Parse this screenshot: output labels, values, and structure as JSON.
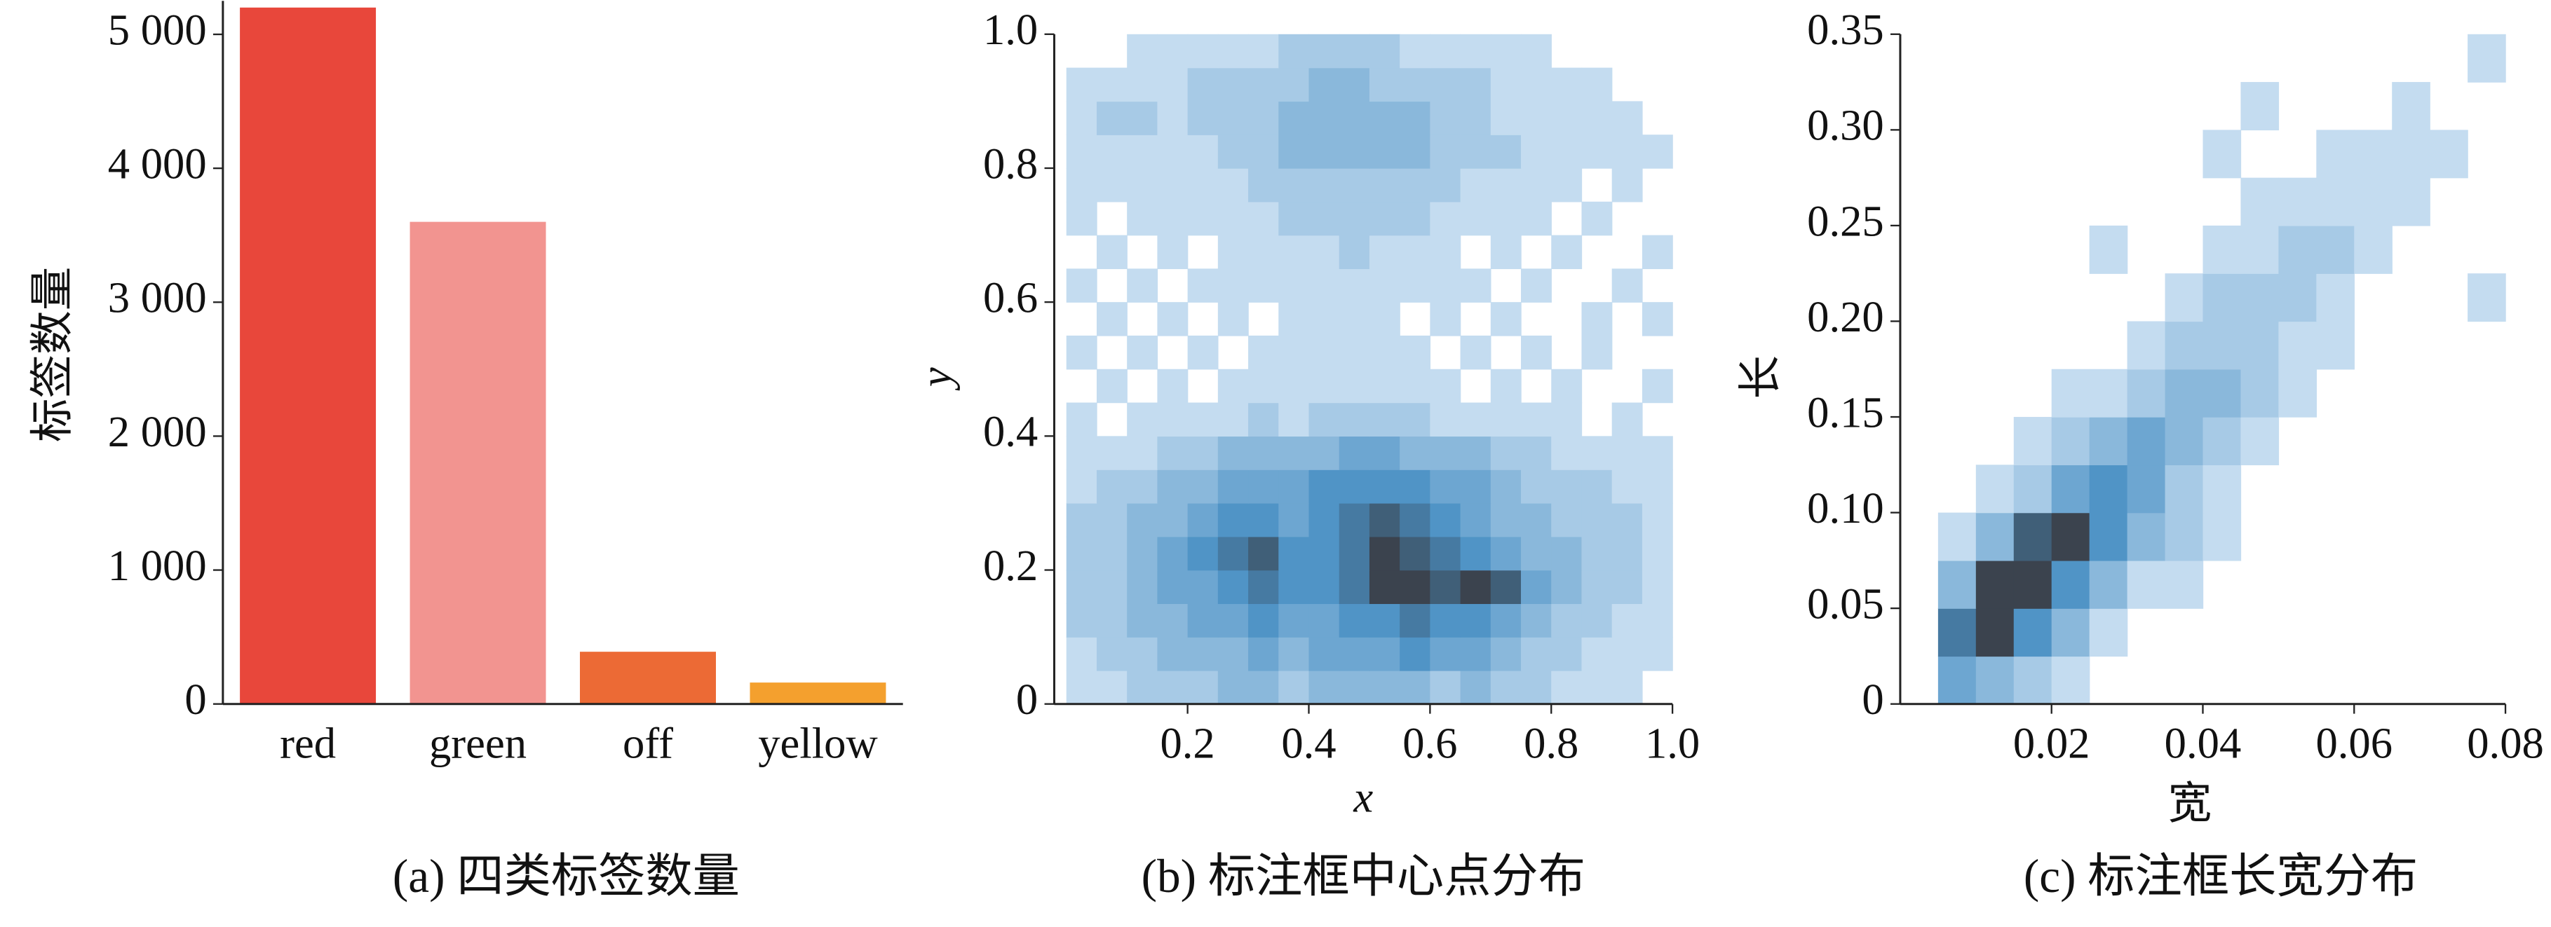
{
  "chart_data": [
    {
      "type": "bar",
      "title": "(a) 四类标签数量",
      "ylabel": "标签数量",
      "categories": [
        "red",
        "green",
        "off",
        "yellow"
      ],
      "values": [
        5200,
        3600,
        390,
        160
      ],
      "colors": [
        "#e8473b",
        "#f29490",
        "#ec6a35",
        "#f4a02e"
      ],
      "ylim": [
        0,
        5250
      ],
      "yticks": [
        0,
        {
          "value": 1000,
          "label": "1 000"
        },
        {
          "value": 2000,
          "label": "2 000"
        },
        {
          "value": 3000,
          "label": "3 000"
        },
        {
          "value": 4000,
          "label": "4 000"
        },
        {
          "value": 5000,
          "label": "5 000"
        }
      ]
    },
    {
      "type": "hist2d",
      "title": "(b) 标注框中心点分布",
      "xlabel": "x",
      "ylabel": "y",
      "xlim": [
        -0.02,
        1
      ],
      "ylim": [
        0,
        1
      ],
      "xticks": [
        0.2,
        0.4,
        0.6,
        0.8,
        {
          "value": 1,
          "label": "1.0"
        }
      ],
      "yticks": [
        0,
        0.2,
        0.4,
        0.6,
        0.8,
        {
          "value": 1,
          "label": "1.0"
        }
      ],
      "cmap": [
        "#c4dcf0",
        "#4a90c4",
        "#3b434e"
      ],
      "x_bins": [
        0,
        0.05,
        0.1,
        0.15,
        0.2,
        0.25,
        0.3,
        0.35,
        0.4,
        0.45,
        0.5,
        0.55,
        0.6,
        0.65,
        0.7,
        0.75,
        0.8,
        0.85,
        0.9,
        0.95,
        1
      ],
      "y_bins": [
        0,
        0.05,
        0.1,
        0.15,
        0.2,
        0.25,
        0.3,
        0.35,
        0.4,
        0.45,
        0.5,
        0.55,
        0.6,
        0.65,
        0.7,
        0.75,
        0.8,
        0.85,
        0.9,
        0.95,
        1
      ],
      "values": [
        [
          1,
          1,
          2,
          2,
          2,
          3,
          3,
          2,
          3,
          3,
          3,
          3,
          2,
          3,
          2,
          2,
          1,
          1,
          1,
          0
        ],
        [
          1,
          2,
          2,
          3,
          3,
          3,
          4,
          3,
          4,
          4,
          4,
          5,
          4,
          4,
          3,
          2,
          2,
          1,
          1,
          1
        ],
        [
          2,
          2,
          3,
          3,
          4,
          4,
          5,
          4,
          4,
          5,
          5,
          6,
          5,
          5,
          4,
          3,
          2,
          2,
          1,
          1
        ],
        [
          2,
          2,
          3,
          4,
          4,
          5,
          6,
          5,
          5,
          6,
          8,
          8,
          7,
          8,
          7,
          4,
          3,
          2,
          2,
          1
        ],
        [
          2,
          2,
          3,
          4,
          5,
          6,
          7,
          5,
          5,
          6,
          8,
          7,
          6,
          5,
          4,
          3,
          3,
          2,
          2,
          1
        ],
        [
          2,
          2,
          3,
          3,
          4,
          5,
          5,
          4,
          5,
          6,
          7,
          6,
          5,
          4,
          3,
          3,
          2,
          2,
          2,
          1
        ],
        [
          1,
          2,
          2,
          3,
          3,
          4,
          4,
          4,
          5,
          5,
          5,
          5,
          4,
          4,
          3,
          2,
          2,
          2,
          1,
          1
        ],
        [
          1,
          1,
          1,
          2,
          2,
          3,
          3,
          3,
          3,
          4,
          4,
          3,
          3,
          3,
          2,
          2,
          1,
          1,
          1,
          1
        ],
        [
          1,
          0,
          1,
          1,
          1,
          1,
          2,
          1,
          2,
          2,
          2,
          2,
          1,
          1,
          1,
          1,
          1,
          0,
          1,
          0
        ],
        [
          0,
          1,
          0,
          1,
          0,
          1,
          1,
          1,
          1,
          1,
          1,
          1,
          1,
          0,
          1,
          0,
          1,
          0,
          0,
          1
        ],
        [
          1,
          0,
          1,
          0,
          1,
          0,
          1,
          1,
          1,
          1,
          1,
          1,
          0,
          1,
          0,
          1,
          0,
          1,
          0,
          0
        ],
        [
          0,
          1,
          0,
          1,
          0,
          1,
          0,
          1,
          1,
          1,
          1,
          0,
          1,
          0,
          1,
          0,
          0,
          1,
          0,
          1
        ],
        [
          1,
          0,
          1,
          0,
          1,
          1,
          1,
          1,
          1,
          1,
          1,
          1,
          1,
          1,
          0,
          1,
          0,
          0,
          1,
          0
        ],
        [
          0,
          1,
          0,
          1,
          0,
          1,
          1,
          1,
          1,
          2,
          1,
          1,
          1,
          0,
          1,
          0,
          1,
          0,
          0,
          1
        ],
        [
          1,
          0,
          1,
          1,
          1,
          1,
          1,
          2,
          2,
          2,
          2,
          2,
          1,
          1,
          1,
          1,
          0,
          1,
          0,
          0
        ],
        [
          1,
          1,
          1,
          1,
          1,
          1,
          2,
          2,
          2,
          2,
          2,
          2,
          2,
          1,
          1,
          1,
          1,
          0,
          1,
          0
        ],
        [
          1,
          1,
          1,
          1,
          1,
          2,
          2,
          3,
          3,
          3,
          3,
          3,
          2,
          2,
          2,
          1,
          1,
          1,
          1,
          1
        ],
        [
          1,
          2,
          2,
          1,
          2,
          2,
          2,
          3,
          3,
          3,
          3,
          3,
          2,
          2,
          1,
          1,
          1,
          1,
          1,
          0
        ],
        [
          1,
          1,
          1,
          1,
          2,
          2,
          2,
          2,
          3,
          3,
          2,
          2,
          2,
          2,
          1,
          1,
          1,
          1,
          0,
          0
        ],
        [
          0,
          0,
          1,
          1,
          1,
          1,
          1,
          2,
          2,
          2,
          2,
          1,
          1,
          1,
          1,
          1,
          0,
          0,
          0,
          0
        ]
      ]
    },
    {
      "type": "hist2d",
      "title": "(c) 标注框长宽分布",
      "xlabel": "宽",
      "ylabel": "长",
      "xlim": [
        0,
        0.08
      ],
      "ylim": [
        0,
        0.35
      ],
      "xticks": [
        0.02,
        0.04,
        0.06,
        0.08
      ],
      "yticks": [
        0,
        0.05,
        {
          "value": 0.1,
          "label": "0.10"
        },
        0.15,
        {
          "value": 0.2,
          "label": "0.20"
        },
        0.25,
        {
          "value": 0.3,
          "label": "0.30"
        },
        0.35
      ],
      "cmap": [
        "#c4dcf0",
        "#4a90c4",
        "#3b434e"
      ],
      "x_bins": [
        0,
        0.005,
        0.01,
        0.015,
        0.02,
        0.025,
        0.03,
        0.035,
        0.04,
        0.045,
        0.05,
        0.055,
        0.06,
        0.065,
        0.07,
        0.075,
        0.08
      ],
      "y_bins": [
        0,
        0.025,
        0.05,
        0.075,
        0.1,
        0.125,
        0.15,
        0.175,
        0.2,
        0.225,
        0.25,
        0.275,
        0.3,
        0.325,
        0.35
      ],
      "values": [
        [
          0,
          4,
          3,
          2,
          1,
          0,
          0,
          0,
          0,
          0,
          0,
          0,
          0,
          0,
          0,
          0
        ],
        [
          0,
          6,
          8,
          5,
          3,
          1,
          0,
          0,
          0,
          0,
          0,
          0,
          0,
          0,
          0,
          0
        ],
        [
          0,
          3,
          8,
          8,
          5,
          3,
          1,
          1,
          0,
          0,
          0,
          0,
          0,
          0,
          0,
          0
        ],
        [
          0,
          1,
          3,
          7,
          8,
          5,
          3,
          2,
          1,
          0,
          0,
          0,
          0,
          0,
          0,
          0
        ],
        [
          0,
          0,
          1,
          2,
          4,
          5,
          4,
          2,
          1,
          0,
          0,
          0,
          0,
          0,
          0,
          0
        ],
        [
          0,
          0,
          0,
          1,
          2,
          3,
          4,
          3,
          2,
          1,
          0,
          0,
          0,
          0,
          0,
          0
        ],
        [
          0,
          0,
          0,
          0,
          1,
          1,
          2,
          3,
          3,
          2,
          1,
          0,
          0,
          0,
          0,
          0
        ],
        [
          0,
          0,
          0,
          0,
          0,
          0,
          1,
          2,
          2,
          2,
          1,
          1,
          0,
          0,
          0,
          0
        ],
        [
          0,
          0,
          0,
          0,
          0,
          0,
          0,
          1,
          2,
          2,
          2,
          1,
          0,
          0,
          0,
          1
        ],
        [
          0,
          0,
          0,
          0,
          0,
          1,
          0,
          0,
          1,
          1,
          2,
          2,
          1,
          0,
          0,
          0
        ],
        [
          0,
          0,
          0,
          0,
          0,
          0,
          0,
          0,
          0,
          1,
          1,
          1,
          1,
          1,
          0,
          0
        ],
        [
          0,
          0,
          0,
          0,
          0,
          0,
          0,
          0,
          1,
          0,
          0,
          1,
          1,
          1,
          1,
          0
        ],
        [
          0,
          0,
          0,
          0,
          0,
          0,
          0,
          0,
          0,
          1,
          0,
          0,
          0,
          1,
          0,
          0
        ],
        [
          0,
          0,
          0,
          0,
          0,
          0,
          0,
          0,
          0,
          0,
          0,
          0,
          0,
          0,
          0,
          1
        ]
      ]
    }
  ]
}
